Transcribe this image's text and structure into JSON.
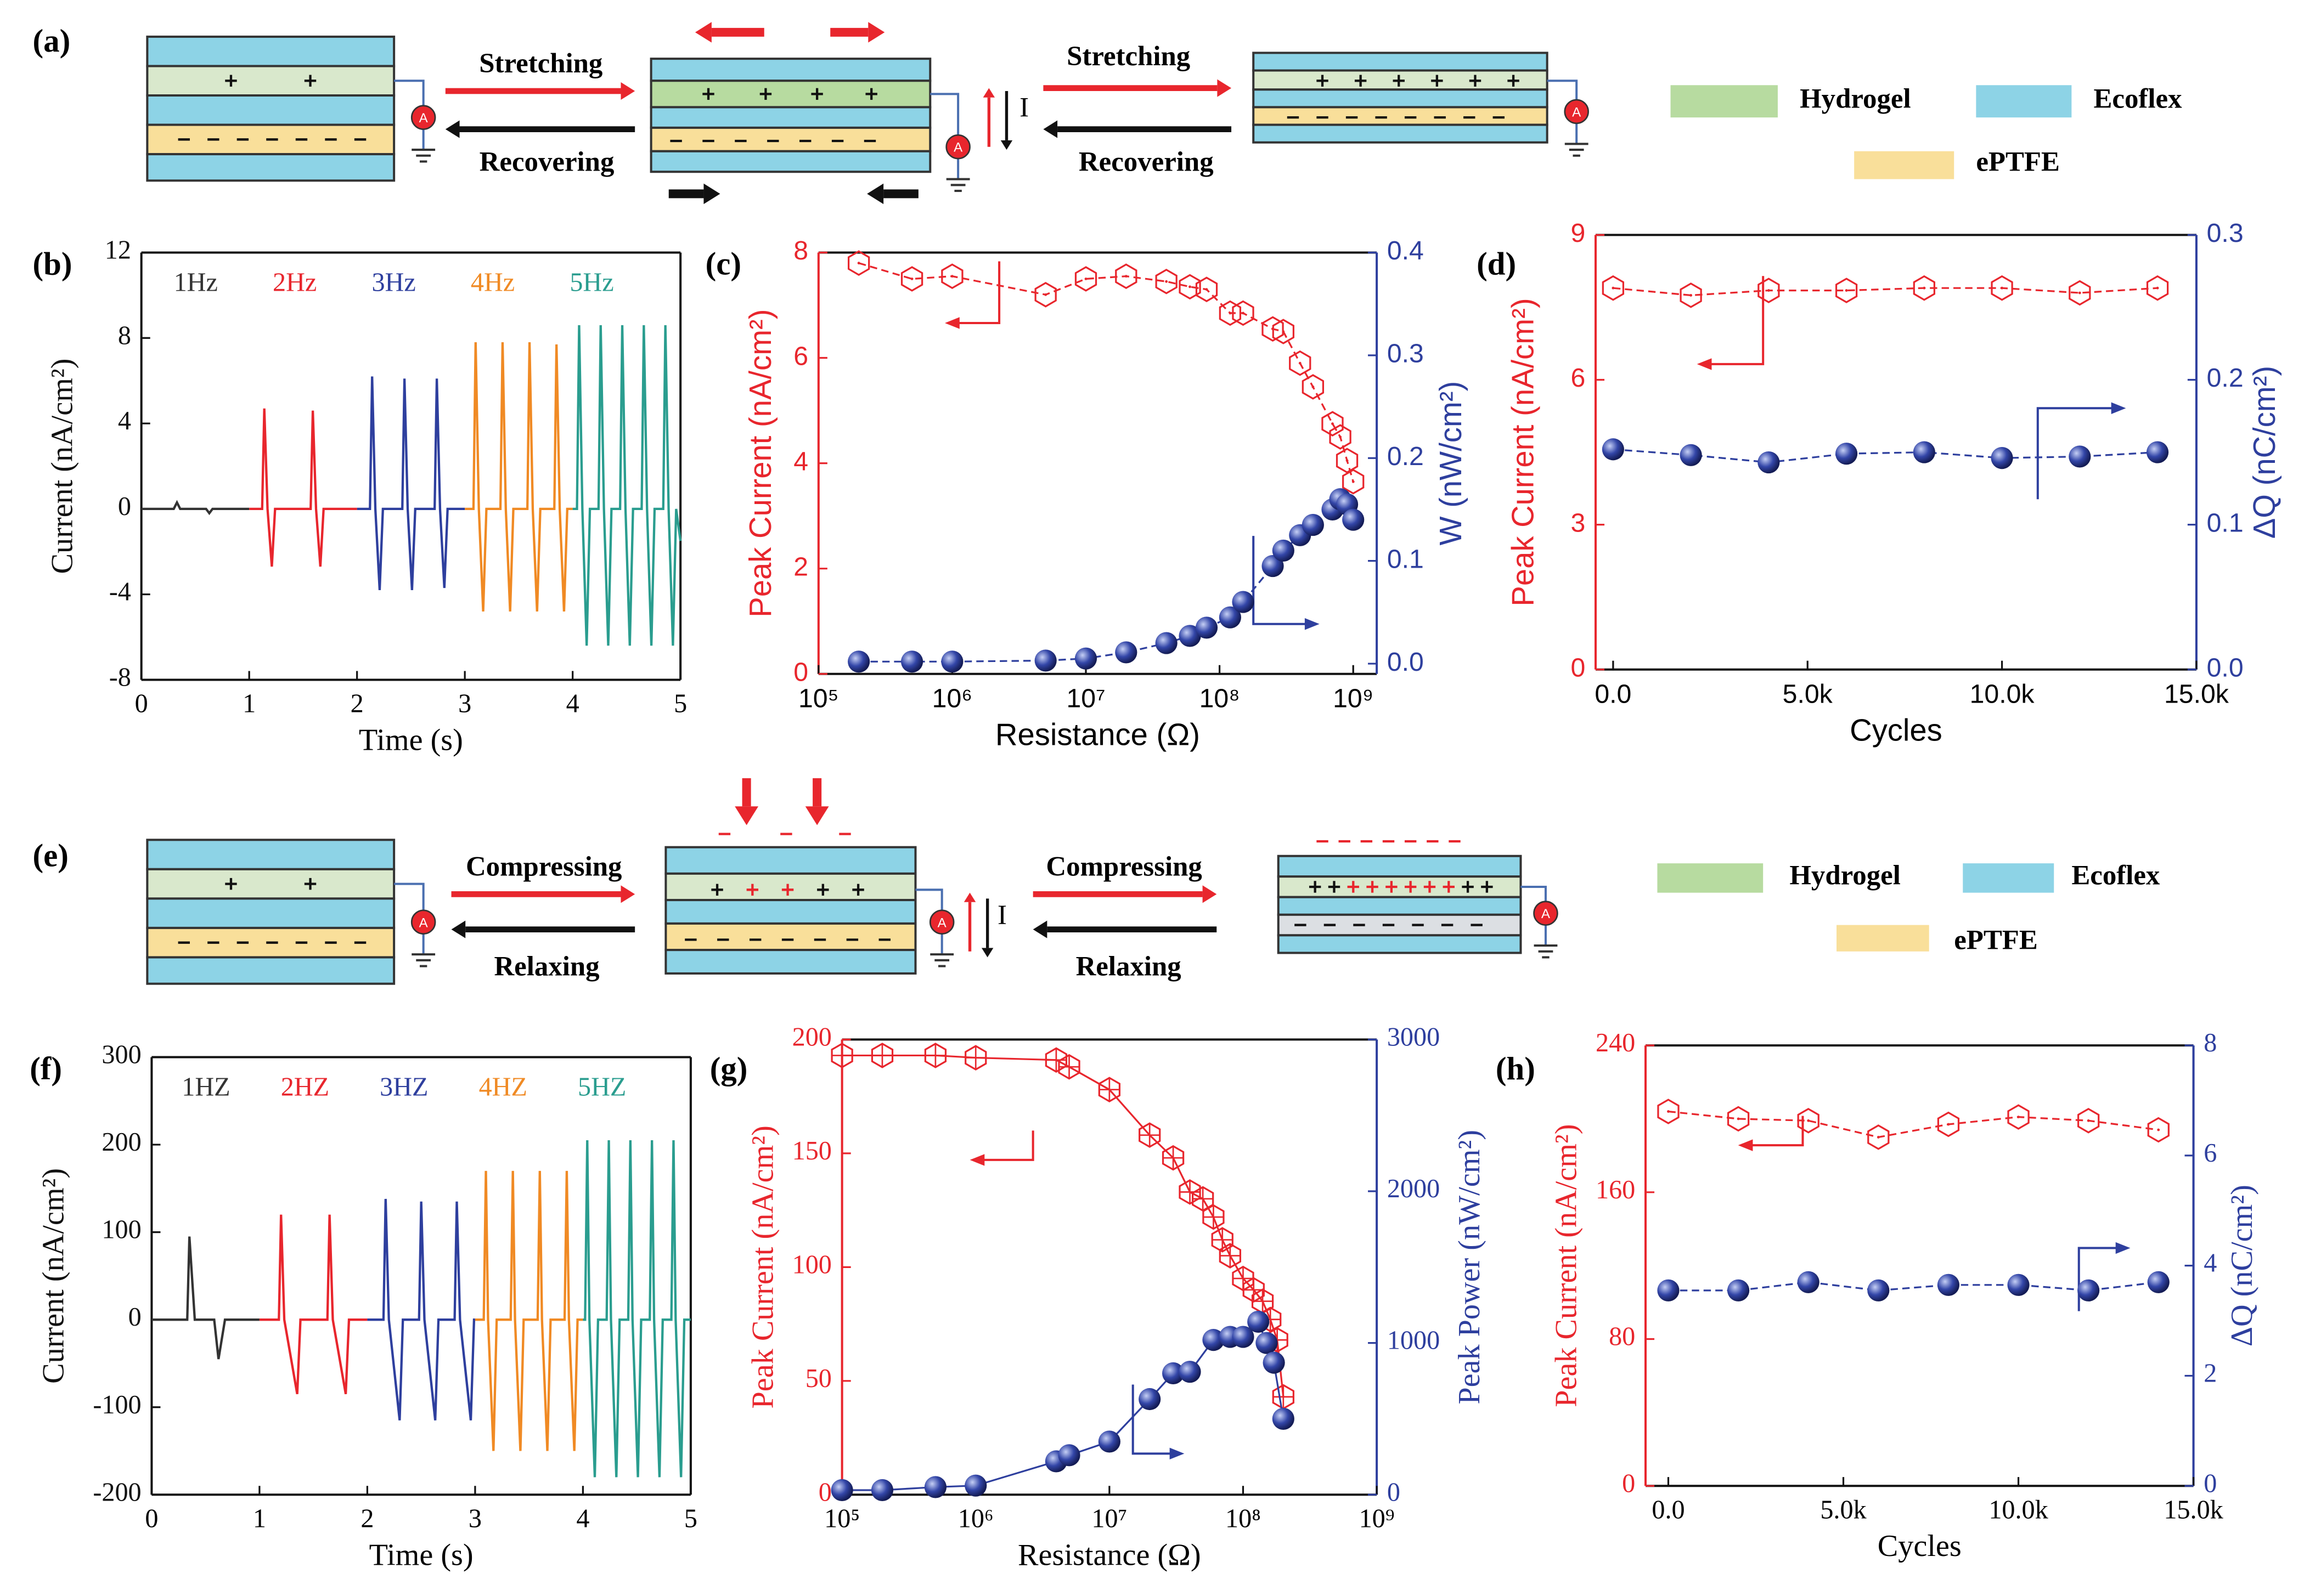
{
  "diagram_a": {
    "label": "(a)",
    "transitions": [
      {
        "forward": "Stretching",
        "backward": "Recovering"
      },
      {
        "forward": "Stretching",
        "backward": "Recovering"
      }
    ],
    "current": "I",
    "ammeter": "A",
    "legend": [
      "Hydrogel",
      "Ecoflex",
      "ePTFE"
    ]
  },
  "diagram_e": {
    "label": "(e)",
    "transitions": [
      {
        "forward": "Compressing",
        "backward": "Relaxing"
      },
      {
        "forward": "Compressing",
        "backward": "Relaxing"
      }
    ],
    "current": "I",
    "ammeter": "A",
    "legend": [
      "Hydrogel",
      "Ecoflex",
      "ePTFE"
    ]
  },
  "chart_data": [
    {
      "type": "line",
      "label": "(b)",
      "xlabel": "Time (s)",
      "ylabel": "Current (nA/cm²)",
      "xlim": [
        0,
        5
      ],
      "ylim": [
        -8,
        12
      ],
      "xticks": [
        0,
        1,
        2,
        3,
        4,
        5
      ],
      "yticks": [
        -8,
        -4,
        0,
        4,
        8,
        12
      ],
      "series": [
        {
          "name": "1Hz",
          "color": "#333333",
          "x": [
            0,
            0.3,
            0.33,
            0.36,
            0.6,
            0.63,
            0.66,
            1.0
          ],
          "values": [
            0,
            0,
            0.3,
            0,
            0,
            -0.2,
            0,
            0
          ]
        },
        {
          "name": "2Hz",
          "color": "#e8262d",
          "x": [
            1.0,
            1.12,
            1.14,
            1.17,
            1.21,
            1.24,
            1.57,
            1.59,
            1.62,
            1.66,
            1.69,
            2.0
          ],
          "values": [
            0,
            0,
            4.7,
            0,
            -2.7,
            0,
            0,
            4.6,
            0,
            -2.7,
            0,
            0
          ]
        },
        {
          "name": "3Hz",
          "color": "#2e3f9e",
          "x": [
            2.0,
            2.12,
            2.14,
            2.17,
            2.21,
            2.24,
            2.42,
            2.44,
            2.47,
            2.51,
            2.54,
            2.72,
            2.74,
            2.77,
            2.81,
            2.84,
            3.0
          ],
          "values": [
            0,
            0,
            6.2,
            0,
            -3.8,
            0,
            0,
            6.1,
            0,
            -3.8,
            0,
            0,
            6.1,
            0,
            -3.7,
            0,
            0
          ]
        },
        {
          "name": "4Hz",
          "color": "#f08a24",
          "x": [
            3.0,
            3.08,
            3.1,
            3.13,
            3.17,
            3.2,
            3.33,
            3.35,
            3.38,
            3.42,
            3.45,
            3.58,
            3.6,
            3.63,
            3.67,
            3.7,
            3.83,
            3.85,
            3.88,
            3.92,
            3.95,
            4.0
          ],
          "values": [
            0,
            0,
            7.8,
            0,
            -4.8,
            0,
            0,
            7.8,
            0,
            -4.8,
            0,
            0,
            7.8,
            0,
            -4.8,
            0,
            0,
            7.7,
            0,
            -4.8,
            0,
            0
          ]
        },
        {
          "name": "5Hz",
          "color": "#2a9d8f",
          "x": [
            4.0,
            4.04,
            4.06,
            4.09,
            4.13,
            4.16,
            4.24,
            4.26,
            4.29,
            4.33,
            4.36,
            4.44,
            4.46,
            4.49,
            4.53,
            4.56,
            4.64,
            4.66,
            4.69,
            4.73,
            4.76,
            4.84,
            4.86,
            4.89,
            4.93,
            4.96,
            5.0
          ],
          "values": [
            0,
            0,
            8.6,
            0,
            -6.4,
            0,
            0,
            8.6,
            0,
            -6.4,
            0,
            0,
            8.6,
            0,
            -6.4,
            0,
            0,
            8.6,
            0,
            -6.4,
            0,
            0,
            8.6,
            0,
            -6.4,
            0,
            -1.5
          ]
        }
      ]
    },
    {
      "type": "line",
      "label": "(c)",
      "xlabel": "Resistance (Ω)",
      "ylabel": "Peak Current (nA/cm²)",
      "y2label": "W (nW/cm²)",
      "xscale": "log",
      "xlim": [
        100000,
        1500000000
      ],
      "ylim": [
        0,
        8
      ],
      "y2lim": [
        -0.01,
        0.4
      ],
      "xticks": [
        {
          "value": 100000,
          "label": "10⁵"
        },
        {
          "value": 1000000,
          "label": "10⁶"
        },
        {
          "value": 10000000,
          "label": "10⁷"
        },
        {
          "value": 100000000,
          "label": "10⁸"
        },
        {
          "value": 1000000000,
          "label": "10⁹"
        }
      ],
      "yticks": [
        0,
        2,
        4,
        6,
        8
      ],
      "y2ticks": [
        {
          "value": 0,
          "label": "0.0"
        },
        0.1,
        0.2,
        0.3,
        0.4
      ],
      "axis_colors": {
        "y": "#e8262d",
        "y2": "#2e3f9e"
      },
      "series": [
        {
          "color": "#e8262d",
          "marker": "hexagon",
          "x": [
            200000,
            500000,
            1000000,
            5000000,
            10000000,
            20000000,
            40000000,
            60000000,
            80000000,
            120000000,
            150000000,
            250000000,
            300000000,
            400000000,
            500000000,
            700000000,
            800000000,
            900000000,
            1000000000
          ],
          "values": [
            7.8,
            7.5,
            7.55,
            7.2,
            7.5,
            7.55,
            7.45,
            7.35,
            7.3,
            6.85,
            6.85,
            6.55,
            6.5,
            5.9,
            5.45,
            4.75,
            4.5,
            4.05,
            3.65
          ]
        },
        {
          "color": "#2e3f9e",
          "marker": "sphere",
          "axis": "y2",
          "x": [
            200000,
            500000,
            1000000,
            5000000,
            10000000,
            20000000,
            40000000,
            60000000,
            80000000,
            120000000,
            150000000,
            250000000,
            300000000,
            400000000,
            500000000,
            700000000,
            800000000,
            900000000,
            1000000000
          ],
          "values": [
            0.002,
            0.002,
            0.002,
            0.003,
            0.005,
            0.011,
            0.02,
            0.027,
            0.035,
            0.045,
            0.06,
            0.095,
            0.11,
            0.125,
            0.135,
            0.15,
            0.16,
            0.155,
            0.14
          ]
        }
      ]
    },
    {
      "type": "line",
      "label": "(d)",
      "xlabel": "Cycles",
      "ylabel": "Peak Current (nA/cm²)",
      "y2label": "ΔQ (nC/cm²)",
      "xlim": [
        -450,
        15000
      ],
      "ylim": [
        0,
        9
      ],
      "y2lim": [
        0,
        0.3
      ],
      "xticks": [
        {
          "value": 0,
          "label": "0.0"
        },
        {
          "value": 5000,
          "label": "5.0k"
        },
        {
          "value": 10000,
          "label": "10.0k"
        },
        {
          "value": 15000,
          "label": "15.0k"
        }
      ],
      "yticks": [
        0,
        3,
        6,
        9
      ],
      "y2ticks": [
        {
          "value": 0,
          "label": "0.0"
        },
        0.1,
        0.2,
        0.3
      ],
      "axis_colors": {
        "y": "#e8262d",
        "y2": "#2e3f9e"
      },
      "series": [
        {
          "color": "#e8262d",
          "marker": "hexagon",
          "x": [
            0,
            2000,
            4000,
            6000,
            8000,
            10000,
            12000,
            14000
          ],
          "values": [
            7.9,
            7.75,
            7.85,
            7.85,
            7.9,
            7.9,
            7.8,
            7.9
          ]
        },
        {
          "color": "#2e3f9e",
          "marker": "sphere",
          "axis": "y2",
          "x": [
            0,
            2000,
            4000,
            6000,
            8000,
            10000,
            12000,
            14000
          ],
          "values": [
            0.152,
            0.148,
            0.143,
            0.149,
            0.15,
            0.146,
            0.147,
            0.15
          ]
        }
      ]
    },
    {
      "type": "line",
      "label": "(f)",
      "xlabel": "Time (s)",
      "ylabel": "Current (nA/cm²)",
      "xlim": [
        0,
        5
      ],
      "ylim": [
        -200,
        300
      ],
      "xticks": [
        0,
        1,
        2,
        3,
        4,
        5
      ],
      "yticks": [
        -200,
        -100,
        0,
        100,
        200,
        300
      ],
      "series": [
        {
          "name": "1HZ",
          "color": "#333333",
          "x": [
            0,
            0.33,
            0.35,
            0.4,
            0.58,
            0.62,
            0.68,
            1.0
          ],
          "values": [
            0,
            0,
            95,
            0,
            0,
            -45,
            0,
            0
          ]
        },
        {
          "name": "2HZ",
          "color": "#e8262d",
          "x": [
            1.0,
            1.18,
            1.2,
            1.23,
            1.35,
            1.38,
            1.63,
            1.65,
            1.68,
            1.8,
            1.83,
            2.0
          ],
          "values": [
            0,
            0,
            120,
            0,
            -85,
            0,
            0,
            120,
            0,
            -85,
            0,
            0
          ]
        },
        {
          "name": "3HZ",
          "color": "#2e3f9e",
          "x": [
            2.0,
            2.15,
            2.17,
            2.2,
            2.3,
            2.33,
            2.48,
            2.5,
            2.53,
            2.63,
            2.66,
            2.81,
            2.83,
            2.86,
            2.96,
            2.99,
            3.0
          ],
          "values": [
            0,
            0,
            138,
            0,
            -115,
            0,
            0,
            135,
            0,
            -115,
            0,
            0,
            135,
            0,
            -115,
            0,
            0
          ]
        },
        {
          "name": "4HZ",
          "color": "#f08a24",
          "x": [
            3.0,
            3.08,
            3.1,
            3.12,
            3.17,
            3.2,
            3.33,
            3.35,
            3.37,
            3.42,
            3.45,
            3.58,
            3.6,
            3.62,
            3.67,
            3.7,
            3.83,
            3.85,
            3.87,
            3.92,
            3.95,
            4.0
          ],
          "values": [
            0,
            0,
            170,
            0,
            -150,
            0,
            0,
            170,
            0,
            -150,
            0,
            0,
            170,
            0,
            -150,
            0,
            0,
            170,
            0,
            -150,
            0,
            0
          ]
        },
        {
          "name": "5HZ",
          "color": "#2a9d8f",
          "x": [
            4.0,
            4.02,
            4.04,
            4.06,
            4.11,
            4.14,
            4.22,
            4.24,
            4.26,
            4.31,
            4.34,
            4.42,
            4.44,
            4.46,
            4.51,
            4.54,
            4.62,
            4.64,
            4.66,
            4.71,
            4.74,
            4.82,
            4.84,
            4.86,
            4.91,
            4.94,
            5.0
          ],
          "values": [
            0,
            0,
            205,
            0,
            -180,
            0,
            0,
            205,
            0,
            -180,
            0,
            0,
            205,
            0,
            -180,
            0,
            0,
            205,
            0,
            -180,
            0,
            0,
            205,
            0,
            -180,
            0,
            0
          ]
        }
      ]
    },
    {
      "type": "line",
      "label": "(g)",
      "xlabel": "Resistance (Ω)",
      "ylabel": "Peak Current (nA/cm²)",
      "y2label": "Peak Power (nW/cm²)",
      "xscale": "log",
      "xlim": [
        100000,
        1000000000
      ],
      "ylim": [
        0,
        200
      ],
      "y2lim": [
        0,
        3000
      ],
      "xticks": [
        {
          "value": 100000,
          "label": "10⁵"
        },
        {
          "value": 1000000,
          "label": "10⁶"
        },
        {
          "value": 10000000,
          "label": "10⁷"
        },
        {
          "value": 100000000,
          "label": "10⁸"
        },
        {
          "value": 1000000000,
          "label": "10⁹"
        }
      ],
      "yticks": [
        0,
        50,
        100,
        150,
        200
      ],
      "y2ticks": [
        0,
        1000,
        2000,
        3000
      ],
      "axis_colors": {
        "y": "#e8262d",
        "y2": "#2e3f9e"
      },
      "series": [
        {
          "color": "#e8262d",
          "marker": "crossed-hexagon",
          "x": [
            100000,
            200000,
            500000,
            1000000,
            4000000,
            5000000,
            10000000,
            20000000,
            30000000,
            40000000,
            50000000,
            60000000,
            70000000,
            80000000,
            100000000,
            120000000,
            140000000,
            160000000,
            180000000,
            200000000
          ],
          "values": [
            193,
            193,
            193,
            192,
            191,
            188,
            178,
            158,
            148,
            133,
            130,
            122,
            112,
            105,
            95,
            90,
            85,
            77,
            68,
            43
          ]
        },
        {
          "color": "#2e3f9e",
          "marker": "sphere",
          "axis": "y2",
          "x": [
            100000,
            200000,
            500000,
            1000000,
            4000000,
            5000000,
            10000000,
            20000000,
            30000000,
            40000000,
            60000000,
            80000000,
            100000000,
            130000000,
            150000000,
            170000000,
            200000000
          ],
          "values": [
            30,
            30,
            50,
            60,
            220,
            260,
            350,
            630,
            800,
            810,
            1020,
            1040,
            1040,
            1140,
            1000,
            870,
            500
          ]
        }
      ]
    },
    {
      "type": "line",
      "label": "(h)",
      "xlabel": "Cycles",
      "ylabel": "Peak Current (nA/cm²)",
      "y2label": "ΔQ (nC/cm²)",
      "xlim": [
        -650,
        15000
      ],
      "ylim": [
        0,
        240
      ],
      "y2lim": [
        0,
        8
      ],
      "xticks": [
        {
          "value": 0,
          "label": "0.0"
        },
        {
          "value": 5000,
          "label": "5.0k"
        },
        {
          "value": 10000,
          "label": "10.0k"
        },
        {
          "value": 15000,
          "label": "15.0k"
        }
      ],
      "yticks": [
        0,
        80,
        160,
        240
      ],
      "y2ticks": [
        0,
        2,
        4,
        6,
        8
      ],
      "axis_colors": {
        "y": "#e8262d",
        "y2": "#2e3f9e"
      },
      "series": [
        {
          "color": "#e8262d",
          "marker": "hexagon",
          "x": [
            0,
            2000,
            4000,
            6000,
            8000,
            10000,
            12000,
            14000
          ],
          "values": [
            204,
            200,
            199,
            190,
            197,
            201,
            199,
            194
          ]
        },
        {
          "color": "#2e3f9e",
          "marker": "sphere",
          "axis": "y2",
          "x": [
            0,
            2000,
            4000,
            6000,
            8000,
            10000,
            12000,
            14000
          ],
          "values": [
            3.55,
            3.55,
            3.7,
            3.55,
            3.65,
            3.65,
            3.55,
            3.7
          ]
        }
      ]
    }
  ]
}
